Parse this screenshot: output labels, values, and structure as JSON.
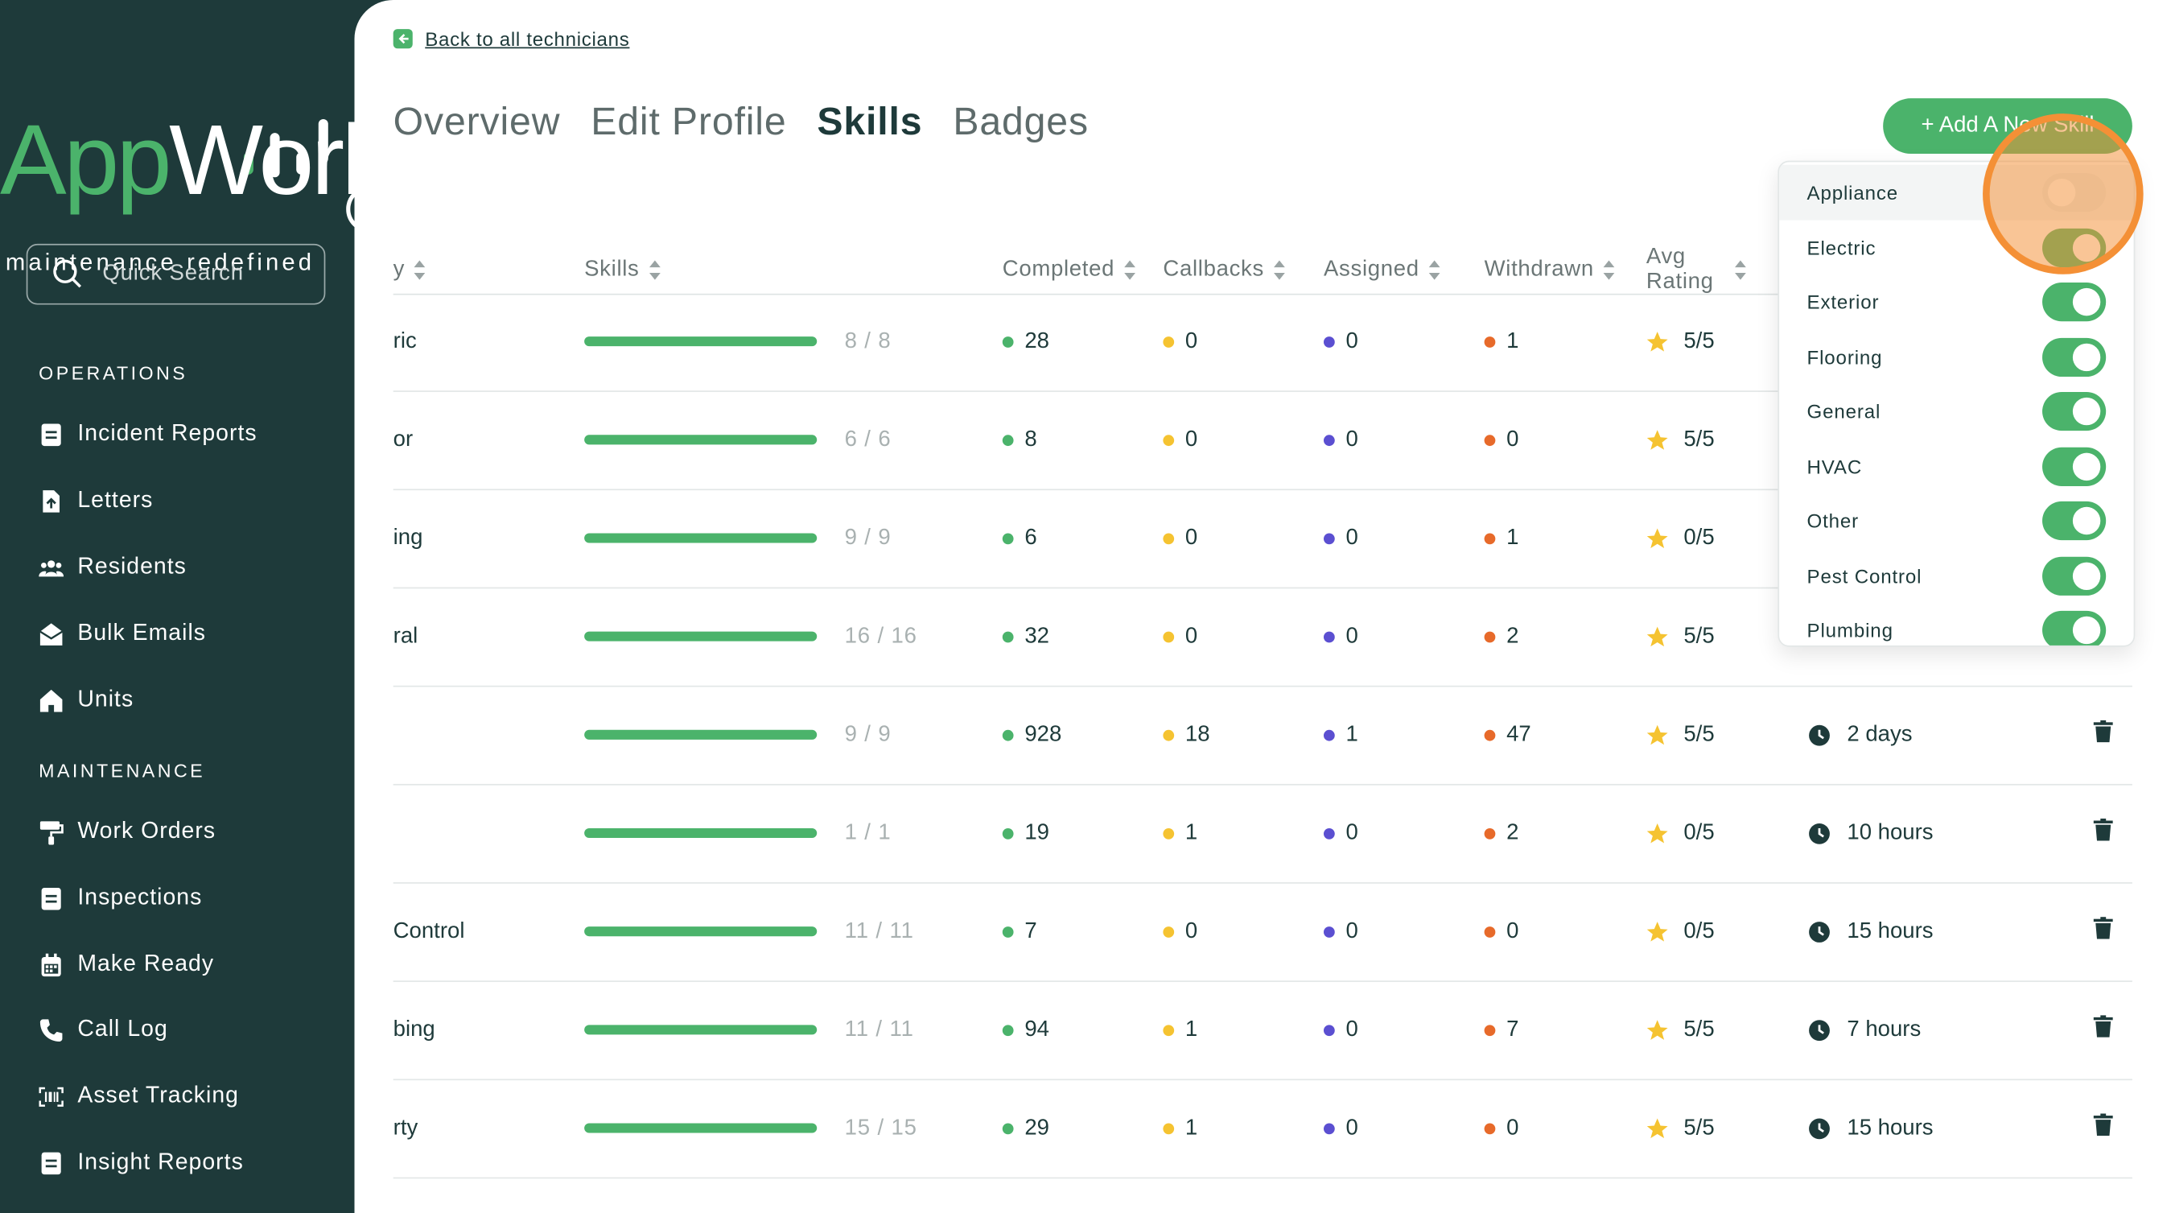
{
  "brand": {
    "name_part1": "App",
    "name_part2": "Work",
    "tagline": "maintenance redefined",
    "accent_color": "#4bb36b",
    "sidebar_color": "#1e3a3a"
  },
  "search": {
    "placeholder": "Quick Search",
    "icon": "search-icon"
  },
  "sidebar": {
    "sections": [
      {
        "label": "OPERATIONS",
        "items": [
          {
            "label": "Incident Reports",
            "icon": "document-icon"
          },
          {
            "label": "Letters",
            "icon": "file-upload-icon"
          },
          {
            "label": "Residents",
            "icon": "users-icon"
          },
          {
            "label": "Bulk Emails",
            "icon": "envelope-open-icon"
          },
          {
            "label": "Units",
            "icon": "home-icon"
          }
        ]
      },
      {
        "label": "MAINTENANCE",
        "items": [
          {
            "label": "Work Orders",
            "icon": "paint-roller-icon"
          },
          {
            "label": "Inspections",
            "icon": "document-icon"
          },
          {
            "label": "Make Ready",
            "icon": "calendar-icon"
          },
          {
            "label": "Call Log",
            "icon": "phone-icon"
          },
          {
            "label": "Asset Tracking",
            "icon": "barcode-icon"
          },
          {
            "label": "Insight Reports",
            "icon": "document-icon"
          }
        ]
      }
    ]
  },
  "back_link": {
    "label": "Back to all technicians",
    "icon": "back-arrow-icon"
  },
  "tabs": [
    {
      "label": "Overview",
      "active": false
    },
    {
      "label": "Edit Profile",
      "active": false
    },
    {
      "label": "Skills",
      "active": true
    },
    {
      "label": "Badges",
      "active": false
    }
  ],
  "add_skill_button": {
    "label": "+ Add A New Skill"
  },
  "table": {
    "columns": {
      "skill_partial": "y",
      "skills": "Skills",
      "completed": "Completed",
      "callbacks": "Callbacks",
      "assigned": "Assigned",
      "withdrawn": "Withdrawn",
      "avg_rating_line1": "Avg",
      "avg_rating_line2": "Rating"
    },
    "status_colors": {
      "completed": "#4bb36b",
      "callbacks": "#f5c331",
      "assigned": "#5b4fd1",
      "withdrawn": "#e76a2a",
      "star": "#f5c331"
    },
    "rows": [
      {
        "skill": "ric",
        "progress": 1.0,
        "ratio": "8 / 8",
        "completed": "28",
        "callbacks": "0",
        "assigned": "0",
        "withdrawn": "1",
        "rating": "5/5",
        "time": ""
      },
      {
        "skill": "or",
        "progress": 1.0,
        "ratio": "6 / 6",
        "completed": "8",
        "callbacks": "0",
        "assigned": "0",
        "withdrawn": "0",
        "rating": "5/5",
        "time": ""
      },
      {
        "skill": "ing",
        "progress": 1.0,
        "ratio": "9 / 9",
        "completed": "6",
        "callbacks": "0",
        "assigned": "0",
        "withdrawn": "1",
        "rating": "0/5",
        "time": ""
      },
      {
        "skill": "ral",
        "progress": 1.0,
        "ratio": "16 / 16",
        "completed": "32",
        "callbacks": "0",
        "assigned": "0",
        "withdrawn": "2",
        "rating": "5/5",
        "time": ""
      },
      {
        "skill": "",
        "progress": 1.0,
        "ratio": "9 / 9",
        "completed": "928",
        "callbacks": "18",
        "assigned": "1",
        "withdrawn": "47",
        "rating": "5/5",
        "time": "2 days"
      },
      {
        "skill": "",
        "progress": 1.0,
        "ratio": "1 / 1",
        "completed": "19",
        "callbacks": "1",
        "assigned": "0",
        "withdrawn": "2",
        "rating": "0/5",
        "time": "10 hours"
      },
      {
        "skill": "Control",
        "progress": 1.0,
        "ratio": "11 / 11",
        "completed": "7",
        "callbacks": "0",
        "assigned": "0",
        "withdrawn": "0",
        "rating": "0/5",
        "time": "15 hours"
      },
      {
        "skill": "bing",
        "progress": 1.0,
        "ratio": "11 / 11",
        "completed": "94",
        "callbacks": "1",
        "assigned": "0",
        "withdrawn": "7",
        "rating": "5/5",
        "time": "7 hours"
      },
      {
        "skill": "rty",
        "progress": 1.0,
        "ratio": "15 / 15",
        "completed": "29",
        "callbacks": "1",
        "assigned": "0",
        "withdrawn": "0",
        "rating": "5/5",
        "time": "15 hours"
      }
    ]
  },
  "skills_dropdown": {
    "items": [
      {
        "label": "Appliance",
        "enabled": false
      },
      {
        "label": "Electric",
        "enabled": true
      },
      {
        "label": "Exterior",
        "enabled": true
      },
      {
        "label": "Flooring",
        "enabled": true
      },
      {
        "label": "General",
        "enabled": true
      },
      {
        "label": "HVAC",
        "enabled": true
      },
      {
        "label": "Other",
        "enabled": true
      },
      {
        "label": "Pest Control",
        "enabled": true
      },
      {
        "label": "Plumbing",
        "enabled": true
      }
    ]
  }
}
